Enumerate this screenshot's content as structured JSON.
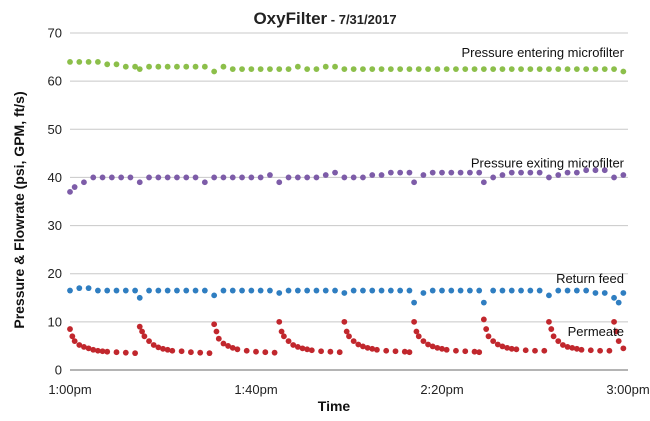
{
  "chart_data": {
    "type": "scatter",
    "title": "OxyFilter",
    "subtitle": " - 7/31/2017",
    "xlabel": "Time",
    "ylabel": "Pressure & Flowrate (psi, GPM, ft/s)",
    "ylim": [
      0,
      70
    ],
    "yticks": [
      0,
      10,
      20,
      30,
      40,
      50,
      60,
      70
    ],
    "xlim_minutes": [
      0,
      120
    ],
    "xticks": [
      {
        "label": "1:00pm",
        "t": 0
      },
      {
        "label": "1:40pm",
        "t": 40
      },
      {
        "label": "2:20pm",
        "t": 80
      },
      {
        "label": "3:00pm",
        "t": 120
      }
    ],
    "grid": "horizontal",
    "legend": "none (series labeled inline)",
    "series": [
      {
        "name": "Pressure entering microfilter",
        "color": "#8cbf4a",
        "points": [
          [
            0,
            64
          ],
          [
            2,
            64
          ],
          [
            4,
            64
          ],
          [
            6,
            64
          ],
          [
            8,
            63.5
          ],
          [
            10,
            63.5
          ],
          [
            12,
            63
          ],
          [
            14,
            63
          ],
          [
            15,
            62.5
          ],
          [
            17,
            63
          ],
          [
            19,
            63
          ],
          [
            21,
            63
          ],
          [
            23,
            63
          ],
          [
            25,
            63
          ],
          [
            27,
            63
          ],
          [
            29,
            63
          ],
          [
            31,
            62
          ],
          [
            33,
            63
          ],
          [
            35,
            62.5
          ],
          [
            37,
            62.5
          ],
          [
            39,
            62.5
          ],
          [
            41,
            62.5
          ],
          [
            43,
            62.5
          ],
          [
            45,
            62.5
          ],
          [
            47,
            62.5
          ],
          [
            49,
            63
          ],
          [
            51,
            62.5
          ],
          [
            53,
            62.5
          ],
          [
            55,
            63
          ],
          [
            57,
            63
          ],
          [
            59,
            62.5
          ],
          [
            61,
            62.5
          ],
          [
            63,
            62.5
          ],
          [
            65,
            62.5
          ],
          [
            67,
            62.5
          ],
          [
            69,
            62.5
          ],
          [
            71,
            62.5
          ],
          [
            73,
            62.5
          ],
          [
            75,
            62.5
          ],
          [
            77,
            62.5
          ],
          [
            79,
            62.5
          ],
          [
            81,
            62.5
          ],
          [
            83,
            62.5
          ],
          [
            85,
            62.5
          ],
          [
            87,
            62.5
          ],
          [
            89,
            62.5
          ],
          [
            91,
            62.5
          ],
          [
            93,
            62.5
          ],
          [
            95,
            62.5
          ],
          [
            97,
            62.5
          ],
          [
            99,
            62.5
          ],
          [
            101,
            62.5
          ],
          [
            103,
            62.5
          ],
          [
            105,
            62.5
          ],
          [
            107,
            62.5
          ],
          [
            109,
            62.5
          ],
          [
            111,
            62.5
          ],
          [
            113,
            62.5
          ],
          [
            115,
            62.5
          ],
          [
            117,
            62.5
          ],
          [
            119,
            62
          ]
        ]
      },
      {
        "name": "Pressure exiting microfilter",
        "color": "#7d5ca8",
        "points": [
          [
            0,
            37
          ],
          [
            1,
            38
          ],
          [
            3,
            39
          ],
          [
            5,
            40
          ],
          [
            7,
            40
          ],
          [
            9,
            40
          ],
          [
            11,
            40
          ],
          [
            13,
            40
          ],
          [
            15,
            39
          ],
          [
            17,
            40
          ],
          [
            19,
            40
          ],
          [
            21,
            40
          ],
          [
            23,
            40
          ],
          [
            25,
            40
          ],
          [
            27,
            40
          ],
          [
            29,
            39
          ],
          [
            31,
            40
          ],
          [
            33,
            40
          ],
          [
            35,
            40
          ],
          [
            37,
            40
          ],
          [
            39,
            40
          ],
          [
            41,
            40
          ],
          [
            43,
            40.5
          ],
          [
            45,
            39
          ],
          [
            47,
            40
          ],
          [
            49,
            40
          ],
          [
            51,
            40
          ],
          [
            53,
            40
          ],
          [
            55,
            40.5
          ],
          [
            57,
            41
          ],
          [
            59,
            40
          ],
          [
            61,
            40
          ],
          [
            63,
            40
          ],
          [
            65,
            40.5
          ],
          [
            67,
            40.5
          ],
          [
            69,
            41
          ],
          [
            71,
            41
          ],
          [
            73,
            41
          ],
          [
            74,
            39
          ],
          [
            76,
            40.5
          ],
          [
            78,
            41
          ],
          [
            80,
            41
          ],
          [
            82,
            41
          ],
          [
            84,
            41
          ],
          [
            86,
            41
          ],
          [
            88,
            41
          ],
          [
            89,
            39
          ],
          [
            91,
            40
          ],
          [
            93,
            40.5
          ],
          [
            95,
            41
          ],
          [
            97,
            41
          ],
          [
            99,
            41
          ],
          [
            101,
            41
          ],
          [
            103,
            40
          ],
          [
            105,
            40.5
          ],
          [
            107,
            41
          ],
          [
            109,
            41
          ],
          [
            111,
            41.5
          ],
          [
            113,
            41.5
          ],
          [
            115,
            41.5
          ],
          [
            117,
            40
          ],
          [
            119,
            40.5
          ]
        ]
      },
      {
        "name": "Return feed",
        "color": "#2f7ec1",
        "points": [
          [
            0,
            16.5
          ],
          [
            2,
            17
          ],
          [
            4,
            17
          ],
          [
            6,
            16.5
          ],
          [
            8,
            16.5
          ],
          [
            10,
            16.5
          ],
          [
            12,
            16.5
          ],
          [
            14,
            16.5
          ],
          [
            15,
            15
          ],
          [
            17,
            16.5
          ],
          [
            19,
            16.5
          ],
          [
            21,
            16.5
          ],
          [
            23,
            16.5
          ],
          [
            25,
            16.5
          ],
          [
            27,
            16.5
          ],
          [
            29,
            16.5
          ],
          [
            31,
            15.5
          ],
          [
            33,
            16.5
          ],
          [
            35,
            16.5
          ],
          [
            37,
            16.5
          ],
          [
            39,
            16.5
          ],
          [
            41,
            16.5
          ],
          [
            43,
            16.5
          ],
          [
            45,
            16
          ],
          [
            47,
            16.5
          ],
          [
            49,
            16.5
          ],
          [
            51,
            16.5
          ],
          [
            53,
            16.5
          ],
          [
            55,
            16.5
          ],
          [
            57,
            16.5
          ],
          [
            59,
            16
          ],
          [
            61,
            16.5
          ],
          [
            63,
            16.5
          ],
          [
            65,
            16.5
          ],
          [
            67,
            16.5
          ],
          [
            69,
            16.5
          ],
          [
            71,
            16.5
          ],
          [
            73,
            16.5
          ],
          [
            74,
            14
          ],
          [
            76,
            16
          ],
          [
            78,
            16.5
          ],
          [
            80,
            16.5
          ],
          [
            82,
            16.5
          ],
          [
            84,
            16.5
          ],
          [
            86,
            16.5
          ],
          [
            88,
            16.5
          ],
          [
            89,
            14
          ],
          [
            91,
            16.5
          ],
          [
            93,
            16.5
          ],
          [
            95,
            16.5
          ],
          [
            97,
            16.5
          ],
          [
            99,
            16.5
          ],
          [
            101,
            16.5
          ],
          [
            103,
            15.5
          ],
          [
            105,
            16.5
          ],
          [
            107,
            16.5
          ],
          [
            109,
            16.5
          ],
          [
            111,
            16.5
          ],
          [
            113,
            16
          ],
          [
            115,
            16
          ],
          [
            117,
            15
          ],
          [
            118,
            14
          ],
          [
            119,
            16
          ]
        ]
      },
      {
        "name": "Permeate",
        "color": "#c1272d",
        "points": [
          [
            0,
            8.5
          ],
          [
            0.5,
            7
          ],
          [
            1,
            6
          ],
          [
            2,
            5.2
          ],
          [
            3,
            4.8
          ],
          [
            4,
            4.5
          ],
          [
            5,
            4.2
          ],
          [
            6,
            4
          ],
          [
            7,
            3.9
          ],
          [
            8,
            3.8
          ],
          [
            10,
            3.7
          ],
          [
            12,
            3.6
          ],
          [
            14,
            3.5
          ],
          [
            15,
            9
          ],
          [
            15.5,
            8
          ],
          [
            16,
            7
          ],
          [
            17,
            6
          ],
          [
            18,
            5.2
          ],
          [
            19,
            4.7
          ],
          [
            20,
            4.4
          ],
          [
            21,
            4.2
          ],
          [
            22,
            4
          ],
          [
            24,
            3.9
          ],
          [
            26,
            3.7
          ],
          [
            28,
            3.6
          ],
          [
            30,
            3.5
          ],
          [
            31,
            9.5
          ],
          [
            31.5,
            8
          ],
          [
            32,
            6.5
          ],
          [
            33,
            5.5
          ],
          [
            34,
            5
          ],
          [
            35,
            4.6
          ],
          [
            36,
            4.3
          ],
          [
            38,
            4
          ],
          [
            40,
            3.8
          ],
          [
            42,
            3.7
          ],
          [
            44,
            3.6
          ],
          [
            45,
            10
          ],
          [
            45.5,
            8
          ],
          [
            46,
            7
          ],
          [
            47,
            6
          ],
          [
            48,
            5.2
          ],
          [
            49,
            4.8
          ],
          [
            50,
            4.5
          ],
          [
            51,
            4.3
          ],
          [
            52,
            4.1
          ],
          [
            54,
            3.9
          ],
          [
            56,
            3.8
          ],
          [
            58,
            3.7
          ],
          [
            59,
            10
          ],
          [
            59.5,
            8
          ],
          [
            60,
            7
          ],
          [
            61,
            6
          ],
          [
            62,
            5.3
          ],
          [
            63,
            4.9
          ],
          [
            64,
            4.6
          ],
          [
            65,
            4.4
          ],
          [
            66,
            4.2
          ],
          [
            68,
            4
          ],
          [
            70,
            3.9
          ],
          [
            72,
            3.8
          ],
          [
            73,
            3.7
          ],
          [
            74,
            10
          ],
          [
            74.5,
            8
          ],
          [
            75,
            7
          ],
          [
            76,
            6
          ],
          [
            77,
            5.3
          ],
          [
            78,
            4.9
          ],
          [
            79,
            4.6
          ],
          [
            80,
            4.4
          ],
          [
            81,
            4.2
          ],
          [
            83,
            4
          ],
          [
            85,
            3.9
          ],
          [
            87,
            3.8
          ],
          [
            88,
            3.7
          ],
          [
            89,
            10.5
          ],
          [
            89.5,
            8.5
          ],
          [
            90,
            7
          ],
          [
            91,
            6
          ],
          [
            92,
            5.3
          ],
          [
            93,
            4.9
          ],
          [
            94,
            4.6
          ],
          [
            95,
            4.4
          ],
          [
            96,
            4.3
          ],
          [
            98,
            4.1
          ],
          [
            100,
            4
          ],
          [
            102,
            4
          ],
          [
            103,
            10
          ],
          [
            103.5,
            8.5
          ],
          [
            104,
            7
          ],
          [
            105,
            6
          ],
          [
            106,
            5.2
          ],
          [
            107,
            4.8
          ],
          [
            108,
            4.6
          ],
          [
            109,
            4.4
          ],
          [
            110,
            4.2
          ],
          [
            112,
            4.1
          ],
          [
            114,
            4
          ],
          [
            116,
            4
          ],
          [
            117,
            10
          ],
          [
            117.5,
            8
          ],
          [
            118,
            6
          ],
          [
            119,
            4.5
          ]
        ]
      }
    ],
    "series_label_positions": [
      {
        "name": "Pressure entering microfilter",
        "anchor_value": 66
      },
      {
        "name": "Pressure exiting microfilter",
        "anchor_value": 43
      },
      {
        "name": "Return feed",
        "anchor_value": 19
      },
      {
        "name": "Permeate",
        "anchor_value": 8
      }
    ]
  }
}
